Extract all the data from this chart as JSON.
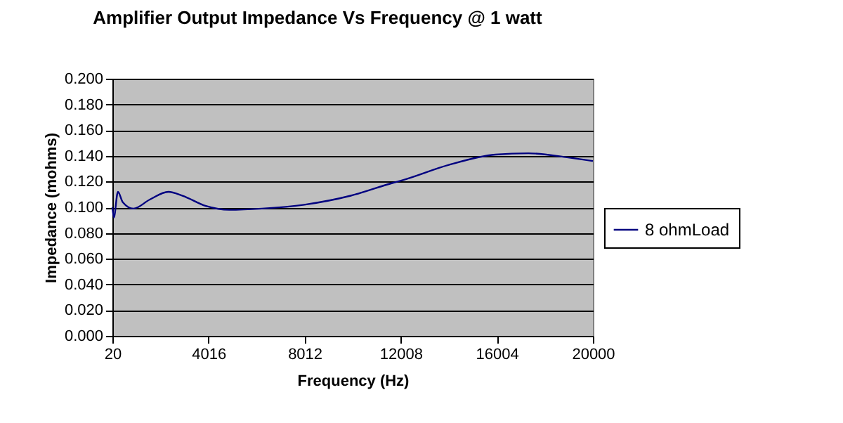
{
  "chart_data": {
    "type": "line",
    "title": "Amplifier Output Impedance Vs Frequency @ 1 watt",
    "xlabel": "Frequency (Hz)",
    "ylabel": "Impedance (mohms)",
    "x": [
      20,
      80,
      250,
      450,
      895,
      1575,
      2350,
      2935,
      3910,
      4880,
      6240,
      8000,
      9930,
      11680,
      12070,
      14010,
      15950,
      17320,
      18870,
      20000
    ],
    "series": [
      {
        "name": "8 ohmLoad",
        "color": "#000080",
        "values": [
          0.1,
          0.092,
          0.112,
          0.104,
          0.099,
          0.106,
          0.112,
          0.109,
          0.101,
          0.098,
          0.099,
          0.102,
          0.109,
          0.119,
          0.121,
          0.133,
          0.141,
          0.142,
          0.139,
          0.136
        ]
      }
    ],
    "xlim": [
      20,
      20000
    ],
    "xticks": [
      20,
      4016,
      8012,
      12008,
      16004,
      20000
    ],
    "ylim": [
      0,
      0.2
    ],
    "yticks": [
      {
        "value": 0,
        "label": "0.000"
      },
      {
        "value": 0.02,
        "label": "0.020"
      },
      {
        "value": 0.04,
        "label": "0.040"
      },
      {
        "value": 0.06,
        "label": "0.060"
      },
      {
        "value": 0.08,
        "label": "0.080"
      },
      {
        "value": 0.1,
        "label": "0.100"
      },
      {
        "value": 0.12,
        "label": "0.120"
      },
      {
        "value": 0.14,
        "label": "0.140"
      },
      {
        "value": 0.16,
        "label": "0.160"
      },
      {
        "value": 0.18,
        "label": "0.180"
      },
      {
        "value": 0.2,
        "label": "0.200"
      }
    ],
    "grid": "y",
    "legend": "right",
    "marker": "none",
    "line_style": "solid"
  }
}
